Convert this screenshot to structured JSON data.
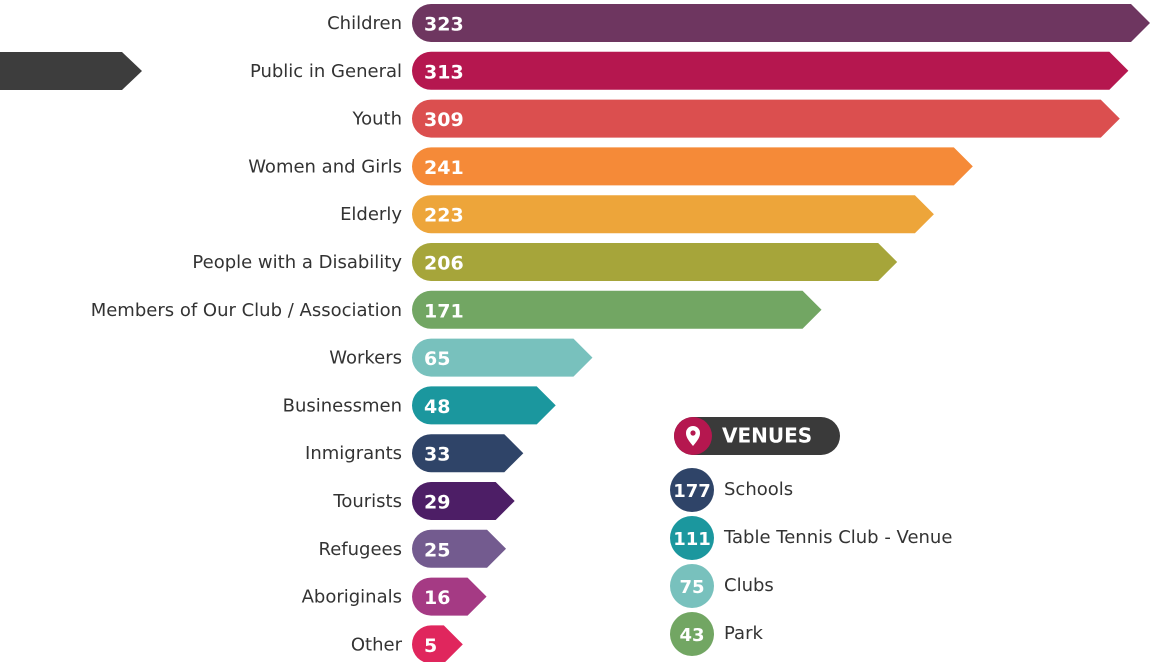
{
  "chart_data": {
    "type": "bar",
    "categories": [
      "Children",
      "Public in General",
      "Youth",
      "Women and Girls",
      "Elderly",
      "People with a Disability",
      "Members of Our Club / Association",
      "Workers",
      "Businessmen",
      "Inmigrants",
      "Tourists",
      "Refugees",
      "Aboriginals",
      "Other"
    ],
    "values": [
      323,
      313,
      309,
      241,
      223,
      206,
      171,
      65,
      48,
      33,
      29,
      25,
      16,
      5
    ],
    "colors": [
      "#6e3660",
      "#b5174f",
      "#db4f4f",
      "#f58a38",
      "#eda53a",
      "#a6a53a",
      "#72a663",
      "#78c1bd",
      "#1b979e",
      "#2f4468",
      "#4d1e66",
      "#735b8f",
      "#a53a84",
      "#e0265d"
    ]
  },
  "venues": {
    "title": "VENUES",
    "items": [
      {
        "value": 177,
        "label": "Schools",
        "color": "#2f4468"
      },
      {
        "value": 111,
        "label": "Table Tennis Club - Venue",
        "color": "#1b979e"
      },
      {
        "value": 75,
        "label": "Clubs",
        "color": "#78c1bd"
      },
      {
        "value": 43,
        "label": "Park",
        "color": "#72a663"
      }
    ]
  }
}
